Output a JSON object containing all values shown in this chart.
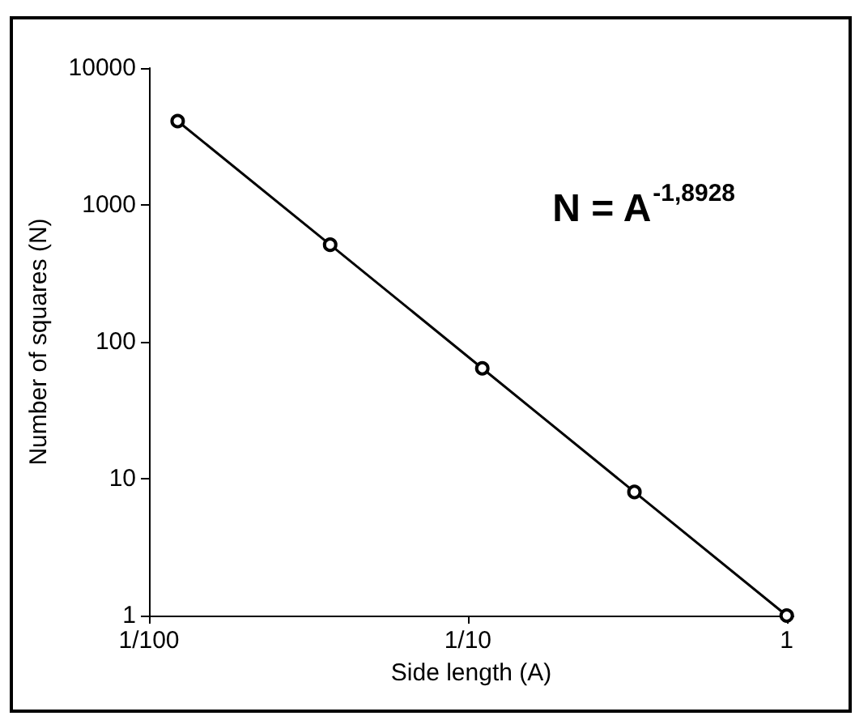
{
  "chart_data": {
    "type": "line",
    "xlabel": "Side length (A)",
    "ylabel": "Number of squares (N)",
    "x": [
      0.0123,
      0.037,
      0.111,
      0.333,
      1
    ],
    "series": [
      {
        "color": "#000000",
        "values": [
          4096,
          512,
          64,
          8,
          1
        ]
      }
    ],
    "log": "xy",
    "xlim": [
      0.01,
      1.05
    ],
    "ylim": [
      1,
      10000
    ],
    "xticks": [
      {
        "value": 0.01,
        "label": "1/100"
      },
      {
        "value": 0.1,
        "label": "1/10"
      },
      {
        "value": 1,
        "label": "1"
      }
    ],
    "yticks": [
      1,
      10,
      100,
      1000,
      10000
    ],
    "grid": false,
    "marker": "circle",
    "line_style": "solid",
    "annotations": [
      "N = A$^{-1,8928}$"
    ]
  }
}
